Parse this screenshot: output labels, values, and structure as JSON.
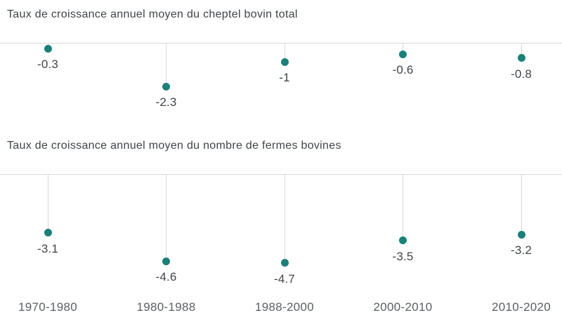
{
  "theme": {
    "background": "#ffffff",
    "dot_color": "#1a8078",
    "line_color": "#d8d8d8",
    "title_color": "#3f4449",
    "value_label_color": "#3f4449",
    "category_label_color": "#5b6065"
  },
  "chart_data": [
    {
      "type": "scatter",
      "style": "lollipop",
      "title": "Taux de croissance annuel moyen du cheptel bovin total",
      "categories": [
        "1970-1980",
        "1980-1988",
        "1988-2000",
        "2000-2010",
        "2010-2020"
      ],
      "values": [
        -0.3,
        -2.3,
        -1,
        -0.6,
        -0.8
      ],
      "labels": [
        "-0.3",
        "-2.3",
        "-1",
        "-0.6",
        "-0.8"
      ],
      "baseline": 0,
      "ylim": [
        -2.5,
        0
      ],
      "grid": false,
      "legend": "none",
      "value_labels_shown": true
    },
    {
      "type": "scatter",
      "style": "lollipop",
      "title": "Taux de croissance annuel moyen du nombre de fermes bovines",
      "categories": [
        "1970-1980",
        "1980-1988",
        "1988-2000",
        "2000-2010",
        "2010-2020"
      ],
      "values": [
        -3.1,
        -4.6,
        -4.7,
        -3.5,
        -3.2
      ],
      "labels": [
        "-3.1",
        "-4.6",
        "-4.7",
        "-3.5",
        "-3.2"
      ],
      "baseline": 0,
      "ylim": [
        -5,
        0
      ],
      "grid": false,
      "legend": "none",
      "value_labels_shown": true
    }
  ]
}
